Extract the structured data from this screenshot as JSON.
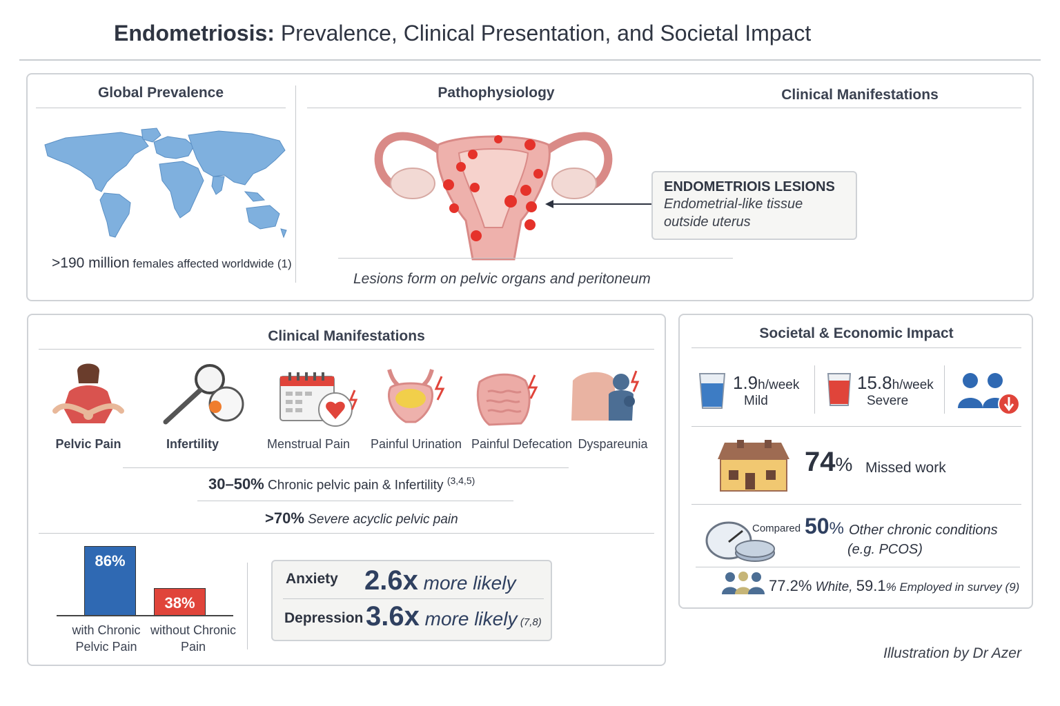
{
  "title": {
    "bold": "Endometriosis:",
    "rest": " Prevalence, Clinical Presentation, and Societal Impact"
  },
  "top": {
    "prevalence": {
      "heading": "Global Prevalence",
      "stat": ">190 million",
      "stat_rest": " females affected worldwide (1)"
    },
    "patho": {
      "heading": "Pathophysiology",
      "caption": "Lesions form on pelvic organs and peritoneum",
      "lesion_title": "ENDOMETRIOIS LESIONS",
      "lesion_line1": "Endometrial-like tissue",
      "lesion_line2": "outside uterus"
    },
    "clinical_heading": "Clinical Manifestations"
  },
  "clinical": {
    "heading": "Clinical Manifestations",
    "icons": [
      {
        "label": "Pelvic Pain",
        "icon": "pelvic-pain-icon"
      },
      {
        "label": "Infertility",
        "icon": "magnifier-icon"
      },
      {
        "label": "Menstrual Pain",
        "icon": "calendar-heart-icon"
      },
      {
        "label": "Painful Urination",
        "icon": "bladder-icon"
      },
      {
        "label": "Painful Defecation",
        "icon": "intestine-icon"
      },
      {
        "label": "Dyspareunia",
        "icon": "couple-icon"
      }
    ],
    "stat1_pct": "30–50%",
    "stat1_text": " Chronic pelvic pain & Infertility ",
    "stat1_ref": "(3,4,5)",
    "stat2_pct": ">70%",
    "stat2_text": " Severe acyclic pelvic pain",
    "bars": [
      {
        "value": 86,
        "label": "86%",
        "cat1": "with Chronic",
        "cat2": "Pelvic Pain",
        "color": "#2f69b3"
      },
      {
        "value": 38,
        "label": "38%",
        "cat1": "without Chronic",
        "cat2": "Pain",
        "color": "#e0443a"
      }
    ],
    "anxiety_label": "Anxiety",
    "anxiety_mult": "2.6x",
    "anxiety_text": " more likely",
    "depression_label": "Depression",
    "depression_mult": "3.6x",
    "depression_text": " more likely",
    "depression_ref": "(7,8)"
  },
  "societal": {
    "heading": "Societal & Economic Impact",
    "mild_value": "1.9",
    "mild_unit": "h/week",
    "mild_label": "Mild",
    "severe_value": "15.8",
    "severe_unit": "h/week",
    "severe_label": "Severe",
    "missed_pct": "74",
    "missed_unit": "%",
    "missed_text": "Missed work",
    "compared_label": "Compared",
    "compared_pct": "50",
    "compared_unit": "%",
    "compared_text": "Other chronic conditions",
    "compared_eg": "(e.g. PCOS)",
    "demo_white": "77.2%",
    "demo_white_text": " White, ",
    "demo_emp": "59.1",
    "demo_emp_text": "% Employed in survey (9)"
  },
  "credit": "Illustration by Dr Azer",
  "colors": {
    "blue": "#6fa5d8",
    "red": "#e0443a",
    "uterus": "#e9a3a0",
    "lesion": "#e5322a"
  }
}
